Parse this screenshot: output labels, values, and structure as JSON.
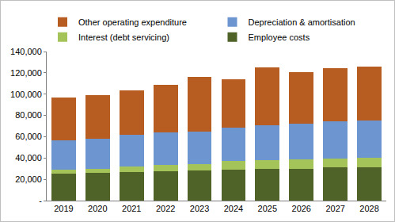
{
  "chart_data": {
    "type": "bar",
    "stacked": true,
    "grid": false,
    "legend": "top",
    "categories": [
      "2019",
      "2020",
      "2021",
      "2022",
      "2023",
      "2024",
      "2025",
      "2026",
      "2027",
      "2028"
    ],
    "series": [
      {
        "name": "Employee costs",
        "color": "#4f6228",
        "values": [
          25000,
          26000,
          27000,
          27500,
          28000,
          29000,
          29500,
          30000,
          31000,
          31500
        ]
      },
      {
        "name": "Interest (debt servicing)",
        "color": "#a4c45a",
        "values": [
          4000,
          4000,
          5000,
          6000,
          6500,
          8000,
          8500,
          8500,
          8500,
          8500
        ]
      },
      {
        "name": "Depreciation & amortisation",
        "color": "#6d95d0",
        "values": [
          27500,
          28000,
          29500,
          30500,
          30500,
          31500,
          32500,
          33500,
          35000,
          35500
        ]
      },
      {
        "name": "Other operating expenditure",
        "color": "#b85d22",
        "values": [
          40500,
          41000,
          42000,
          45000,
          51000,
          45500,
          54500,
          48500,
          49500,
          50500
        ]
      }
    ],
    "ylim": [
      0,
      140000
    ],
    "yticks": [
      {
        "value": 0,
        "label": "-"
      },
      {
        "value": 20000,
        "label": "20,000"
      },
      {
        "value": 40000,
        "label": "40,000"
      },
      {
        "value": 60000,
        "label": "60,000"
      },
      {
        "value": 80000,
        "label": "80,000"
      },
      {
        "value": 100000,
        "label": "100,000"
      },
      {
        "value": 120000,
        "label": "120,000"
      },
      {
        "value": 140000,
        "label": "140,000"
      }
    ]
  }
}
